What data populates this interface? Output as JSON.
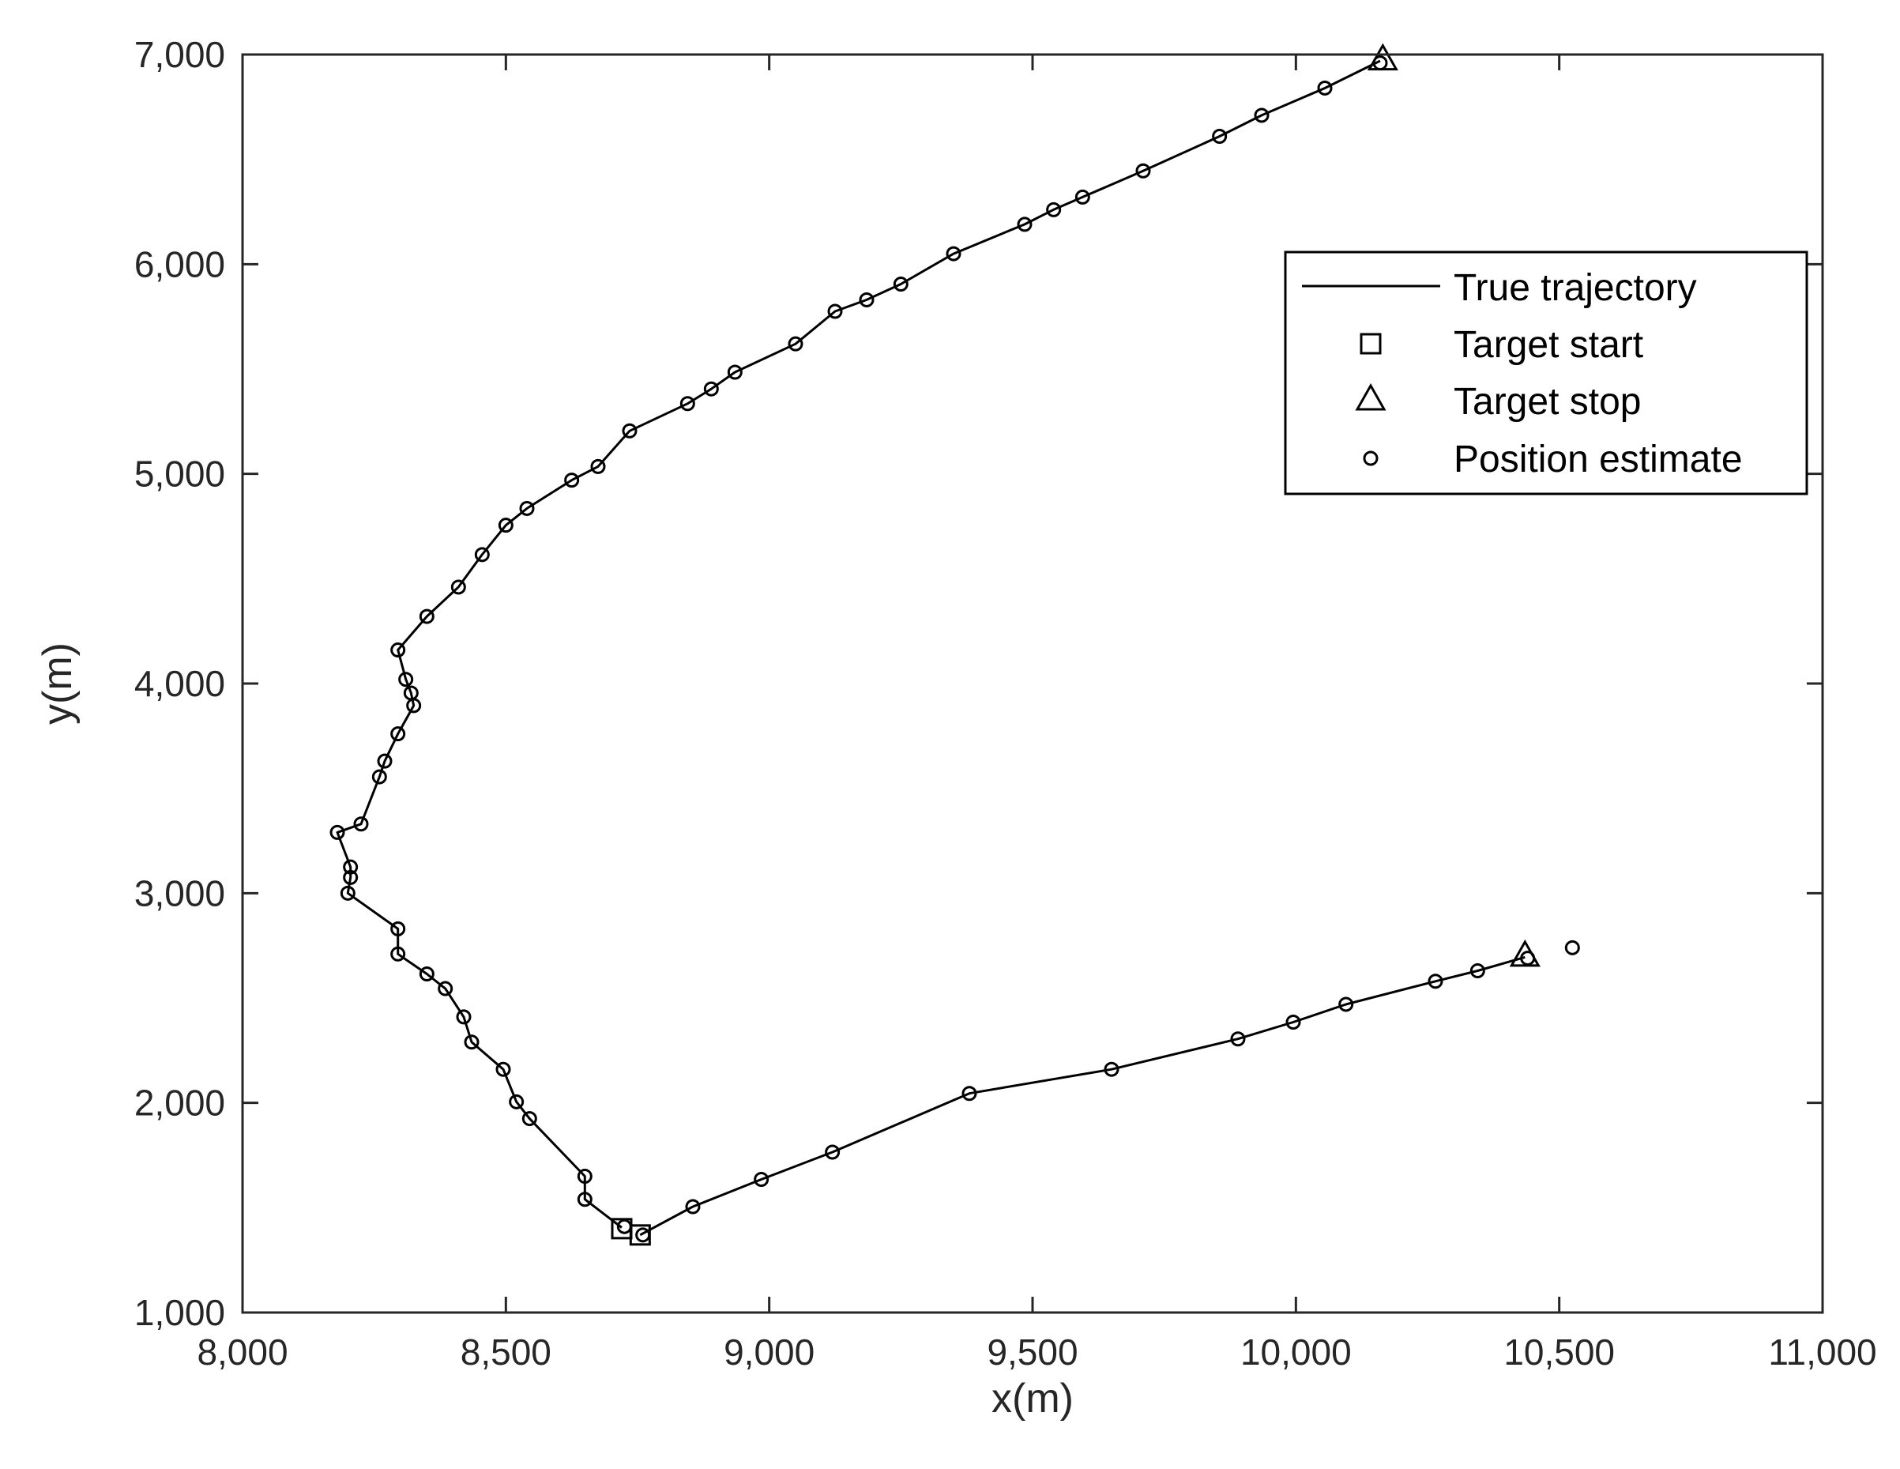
{
  "chart_data": {
    "type": "line",
    "title": "",
    "xlabel": "x(m)",
    "ylabel": "y(m)",
    "xlim": [
      8000,
      11000
    ],
    "ylim": [
      1000,
      7000
    ],
    "xticks": [
      8000,
      8500,
      9000,
      9500,
      10000,
      10500,
      11000
    ],
    "yticks": [
      1000,
      2000,
      3000,
      4000,
      5000,
      6000,
      7000
    ],
    "xtick_labels": [
      "8,000",
      "8,500",
      "9,000",
      "9,500",
      "10,000",
      "10,500",
      "11,000"
    ],
    "ytick_labels": [
      "1,000",
      "2,000",
      "3,000",
      "4,000",
      "5,000",
      "6,000",
      "7,000"
    ],
    "grid": false,
    "legend_position": "top-right",
    "legend": {
      "true_trajectory": "True trajectory",
      "target_start": "Target start",
      "target_stop": "Target stop",
      "position_estimate": "Position estimate"
    },
    "series": [
      {
        "name": "True trajectory",
        "kind": "line",
        "x": [
          8720,
          8650,
          8650,
          8545,
          8520,
          8495,
          8435,
          8420,
          8385,
          8350,
          8295,
          8295,
          8200,
          8205,
          8205,
          8180,
          8225,
          8260,
          8270,
          8295,
          8325,
          8320,
          8310,
          8295,
          8350,
          8410,
          8455,
          8500,
          8540,
          8625,
          8675,
          8735,
          8845,
          8890,
          8935,
          9050,
          9125,
          9185,
          9250,
          9350,
          9485,
          9540,
          9595,
          9710,
          9855,
          9935,
          10055,
          10160
        ],
        "y": [
          1405,
          1540,
          1650,
          1925,
          2005,
          2160,
          2290,
          2410,
          2545,
          2615,
          2710,
          2830,
          3000,
          3075,
          3125,
          3290,
          3330,
          3555,
          3630,
          3760,
          3895,
          3955,
          4020,
          4160,
          4320,
          4460,
          4615,
          4755,
          4835,
          4970,
          5035,
          5205,
          5335,
          5405,
          5485,
          5620,
          5775,
          5830,
          5905,
          6050,
          6190,
          6260,
          6320,
          6445,
          6610,
          6710,
          6840,
          6970
        ]
      },
      {
        "name": "True trajectory",
        "kind": "line",
        "x": [
          8755,
          8855,
          8985,
          9120,
          9380,
          9650,
          9890,
          9995,
          10095,
          10265,
          10345,
          10435
        ],
        "y": [
          1370,
          1505,
          1635,
          1765,
          2045,
          2160,
          2305,
          2385,
          2470,
          2580,
          2630,
          2695
        ]
      },
      {
        "name": "Target start",
        "kind": "square",
        "x": [
          8720,
          8755
        ],
        "y": [
          1400,
          1370
        ]
      },
      {
        "name": "Target stop",
        "kind": "triangle",
        "x": [
          10165,
          10435
        ],
        "y": [
          6975,
          2700
        ]
      },
      {
        "name": "Position estimate",
        "kind": "circle",
        "x": [
          8725,
          8650,
          8650,
          8545,
          8520,
          8495,
          8435,
          8420,
          8385,
          8350,
          8295,
          8295,
          8200,
          8205,
          8205,
          8180,
          8225,
          8260,
          8270,
          8295,
          8325,
          8320,
          8310,
          8295,
          8350,
          8410,
          8455,
          8500,
          8540,
          8625,
          8675,
          8735,
          8845,
          8890,
          8935,
          9050,
          9125,
          9185,
          9250,
          9350,
          9485,
          9540,
          9595,
          9710,
          9855,
          9935,
          10055,
          10160,
          8760,
          8855,
          8985,
          9120,
          9380,
          9650,
          9890,
          9995,
          10095,
          10265,
          10345,
          10440,
          10525
        ],
        "y": [
          1410,
          1540,
          1650,
          1925,
          2005,
          2160,
          2290,
          2410,
          2545,
          2615,
          2710,
          2830,
          3000,
          3075,
          3125,
          3290,
          3330,
          3555,
          3630,
          3760,
          3895,
          3955,
          4020,
          4160,
          4320,
          4460,
          4615,
          4755,
          4835,
          4970,
          5035,
          5205,
          5335,
          5405,
          5485,
          5620,
          5775,
          5830,
          5905,
          6050,
          6190,
          6260,
          6320,
          6445,
          6610,
          6710,
          6840,
          6960,
          1370,
          1505,
          1635,
          1765,
          2045,
          2160,
          2305,
          2385,
          2470,
          2580,
          2630,
          2690,
          2740
        ]
      }
    ]
  }
}
